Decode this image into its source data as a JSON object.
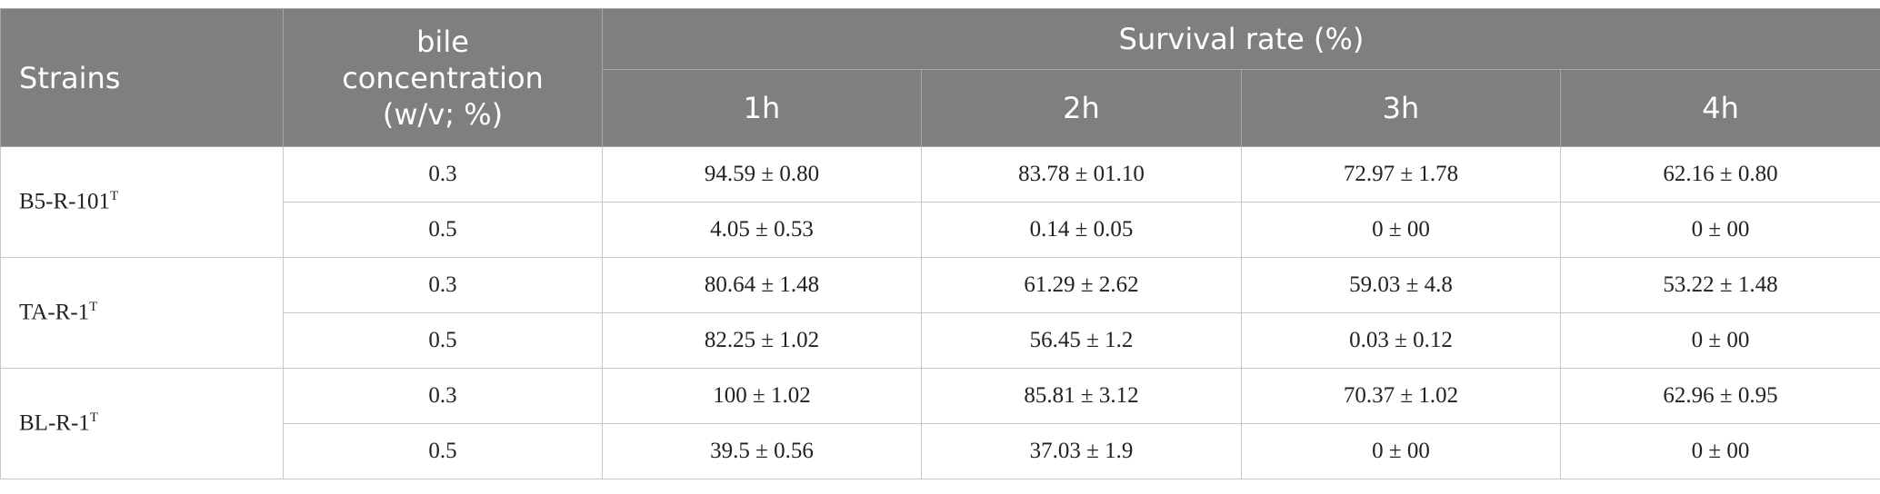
{
  "table": {
    "header": {
      "strains": "Strains",
      "bile": "bile concentration (w/v; %)",
      "survival": "Survival rate (%)",
      "hours": [
        "1h",
        "2h",
        "3h",
        "4h"
      ]
    },
    "groups": [
      {
        "strain": "B5-R-101",
        "sup": "T",
        "rows": [
          {
            "concentration": "0.3",
            "values": [
              "94.59 ± 0.80",
              "83.78 ± 01.10",
              "72.97 ± 1.78",
              "62.16 ± 0.80"
            ]
          },
          {
            "concentration": "0.5",
            "values": [
              "4.05 ± 0.53",
              "0.14 ± 0.05",
              "0 ± 00",
              "0 ± 00"
            ]
          }
        ]
      },
      {
        "strain": "TA-R-1",
        "sup": "T",
        "rows": [
          {
            "concentration": "0.3",
            "values": [
              "80.64 ± 1.48",
              "61.29 ± 2.62",
              "59.03 ± 4.8",
              "53.22 ± 1.48"
            ]
          },
          {
            "concentration": "0.5",
            "values": [
              "82.25 ± 1.02",
              "56.45 ± 1.2",
              "0.03 ± 0.12",
              "0 ± 00"
            ]
          }
        ]
      },
      {
        "strain": "BL-R-1",
        "sup": "T",
        "rows": [
          {
            "concentration": "0.3",
            "values": [
              "100 ± 1.02",
              "85.81 ± 3.12",
              "70.37 ± 1.02",
              "62.96 ± 0.95"
            ]
          },
          {
            "concentration": "0.5",
            "values": [
              "39.5 ± 0.56",
              "37.03 ± 1.9",
              "0 ± 00",
              "0 ± 00"
            ]
          }
        ]
      }
    ]
  }
}
